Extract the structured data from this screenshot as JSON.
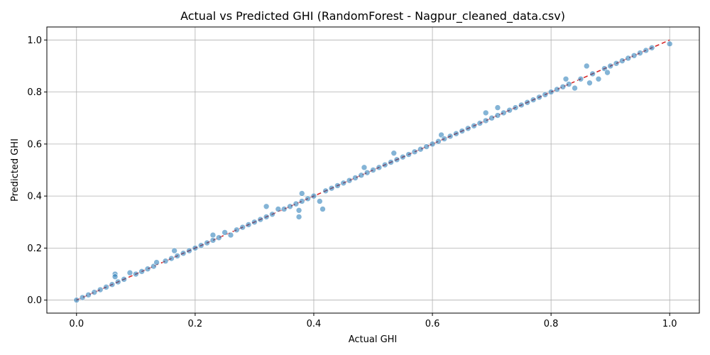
{
  "chart_data": {
    "type": "scatter",
    "title": "Actual vs Predicted GHI (RandomForest - Nagpur_cleaned_data.csv)",
    "xlabel": "Actual GHI",
    "ylabel": "Predicted GHI",
    "xlim": [
      -0.05,
      1.05
    ],
    "ylim": [
      -0.05,
      1.05
    ],
    "xticks": [
      0.0,
      0.2,
      0.4,
      0.6,
      0.8,
      1.0
    ],
    "yticks": [
      0.0,
      0.2,
      0.4,
      0.6,
      0.8,
      1.0
    ],
    "xtick_labels": [
      "0.0",
      "0.2",
      "0.4",
      "0.6",
      "0.8",
      "1.0"
    ],
    "ytick_labels": [
      "0.0",
      "0.2",
      "0.4",
      "0.6",
      "0.8",
      "1.0"
    ],
    "grid": true,
    "point_color": "#1f77b4",
    "reference_line": {
      "style": "dashed",
      "color": "#d62728",
      "from": [
        0,
        0
      ],
      "to": [
        1,
        1
      ]
    },
    "points": [
      [
        0.0,
        0.0
      ],
      [
        0.01,
        0.01
      ],
      [
        0.02,
        0.02
      ],
      [
        0.03,
        0.03
      ],
      [
        0.04,
        0.04
      ],
      [
        0.05,
        0.05
      ],
      [
        0.06,
        0.06
      ],
      [
        0.065,
        0.1
      ],
      [
        0.065,
        0.09
      ],
      [
        0.07,
        0.07
      ],
      [
        0.08,
        0.08
      ],
      [
        0.09,
        0.105
      ],
      [
        0.1,
        0.1
      ],
      [
        0.11,
        0.11
      ],
      [
        0.12,
        0.12
      ],
      [
        0.13,
        0.13
      ],
      [
        0.135,
        0.145
      ],
      [
        0.15,
        0.15
      ],
      [
        0.16,
        0.16
      ],
      [
        0.165,
        0.19
      ],
      [
        0.17,
        0.17
      ],
      [
        0.18,
        0.18
      ],
      [
        0.19,
        0.19
      ],
      [
        0.2,
        0.2
      ],
      [
        0.21,
        0.21
      ],
      [
        0.22,
        0.22
      ],
      [
        0.23,
        0.25
      ],
      [
        0.23,
        0.23
      ],
      [
        0.24,
        0.24
      ],
      [
        0.25,
        0.26
      ],
      [
        0.26,
        0.25
      ],
      [
        0.27,
        0.27
      ],
      [
        0.28,
        0.28
      ],
      [
        0.29,
        0.29
      ],
      [
        0.3,
        0.3
      ],
      [
        0.31,
        0.31
      ],
      [
        0.32,
        0.36
      ],
      [
        0.32,
        0.32
      ],
      [
        0.33,
        0.33
      ],
      [
        0.34,
        0.35
      ],
      [
        0.35,
        0.35
      ],
      [
        0.36,
        0.36
      ],
      [
        0.37,
        0.37
      ],
      [
        0.375,
        0.32
      ],
      [
        0.375,
        0.345
      ],
      [
        0.38,
        0.41
      ],
      [
        0.38,
        0.38
      ],
      [
        0.39,
        0.39
      ],
      [
        0.4,
        0.4
      ],
      [
        0.41,
        0.38
      ],
      [
        0.415,
        0.35
      ],
      [
        0.42,
        0.42
      ],
      [
        0.43,
        0.43
      ],
      [
        0.44,
        0.44
      ],
      [
        0.45,
        0.45
      ],
      [
        0.46,
        0.46
      ],
      [
        0.47,
        0.47
      ],
      [
        0.48,
        0.48
      ],
      [
        0.485,
        0.51
      ],
      [
        0.49,
        0.49
      ],
      [
        0.5,
        0.5
      ],
      [
        0.51,
        0.51
      ],
      [
        0.52,
        0.52
      ],
      [
        0.53,
        0.53
      ],
      [
        0.535,
        0.565
      ],
      [
        0.54,
        0.54
      ],
      [
        0.55,
        0.55
      ],
      [
        0.56,
        0.56
      ],
      [
        0.57,
        0.57
      ],
      [
        0.58,
        0.58
      ],
      [
        0.59,
        0.59
      ],
      [
        0.6,
        0.6
      ],
      [
        0.61,
        0.61
      ],
      [
        0.615,
        0.635
      ],
      [
        0.62,
        0.62
      ],
      [
        0.63,
        0.63
      ],
      [
        0.64,
        0.64
      ],
      [
        0.65,
        0.65
      ],
      [
        0.66,
        0.66
      ],
      [
        0.67,
        0.67
      ],
      [
        0.68,
        0.68
      ],
      [
        0.69,
        0.72
      ],
      [
        0.69,
        0.69
      ],
      [
        0.7,
        0.7
      ],
      [
        0.71,
        0.74
      ],
      [
        0.71,
        0.71
      ],
      [
        0.72,
        0.72
      ],
      [
        0.73,
        0.73
      ],
      [
        0.74,
        0.74
      ],
      [
        0.75,
        0.75
      ],
      [
        0.76,
        0.76
      ],
      [
        0.77,
        0.77
      ],
      [
        0.78,
        0.78
      ],
      [
        0.79,
        0.79
      ],
      [
        0.8,
        0.8
      ],
      [
        0.81,
        0.81
      ],
      [
        0.82,
        0.82
      ],
      [
        0.825,
        0.85
      ],
      [
        0.83,
        0.83
      ],
      [
        0.84,
        0.815
      ],
      [
        0.85,
        0.85
      ],
      [
        0.86,
        0.9
      ],
      [
        0.865,
        0.835
      ],
      [
        0.87,
        0.87
      ],
      [
        0.88,
        0.85
      ],
      [
        0.89,
        0.89
      ],
      [
        0.895,
        0.875
      ],
      [
        0.9,
        0.9
      ],
      [
        0.91,
        0.91
      ],
      [
        0.92,
        0.92
      ],
      [
        0.93,
        0.93
      ],
      [
        0.94,
        0.94
      ],
      [
        0.95,
        0.95
      ],
      [
        0.96,
        0.96
      ],
      [
        0.97,
        0.97
      ],
      [
        1.0,
        0.985
      ]
    ]
  }
}
